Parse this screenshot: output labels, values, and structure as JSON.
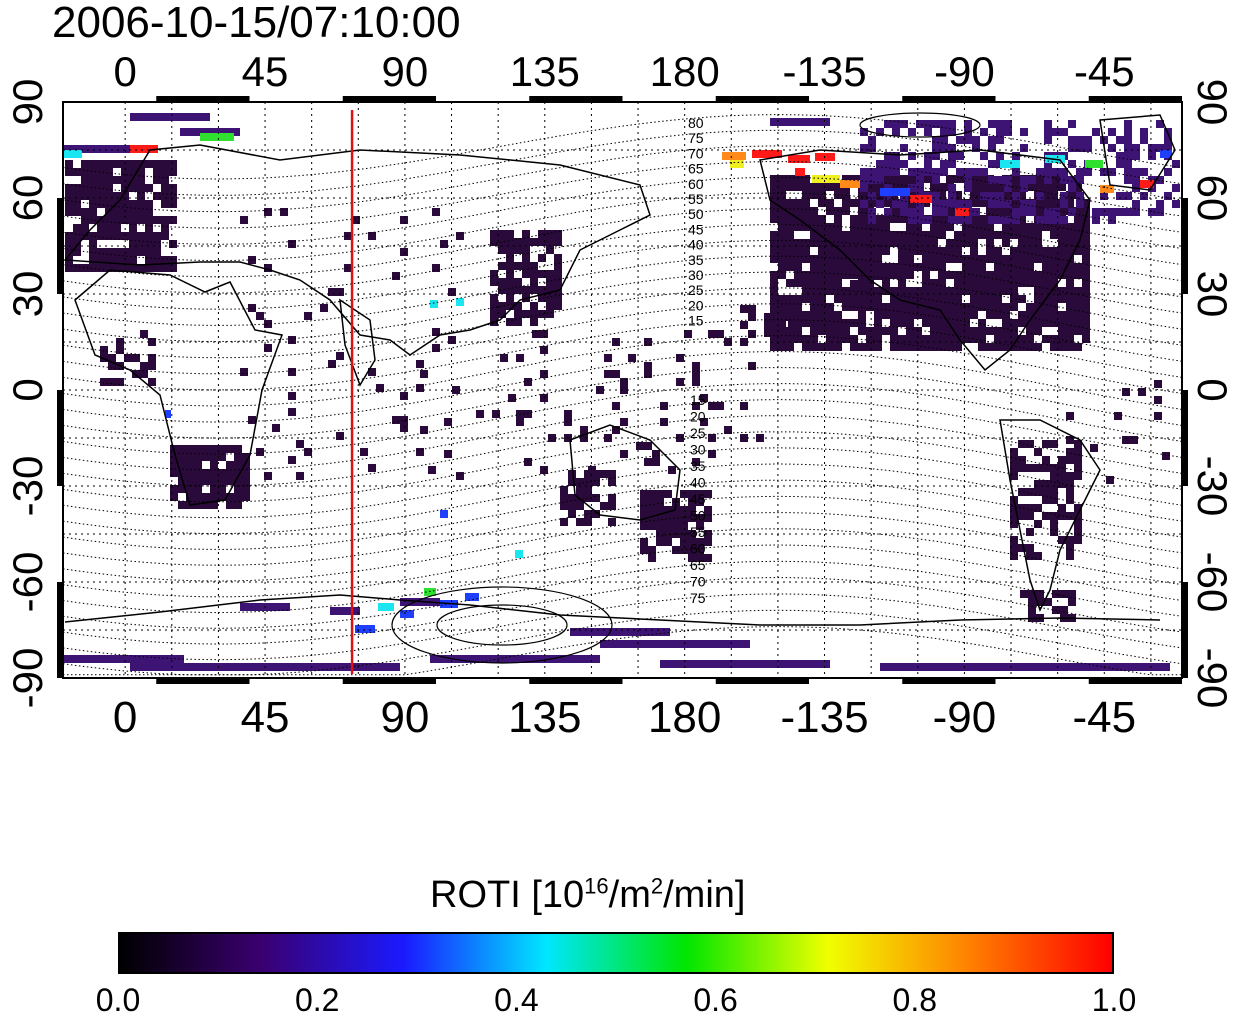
{
  "title": "2006-10-15/07:10:00",
  "map": {
    "lon_ticks": [
      "0",
      "45",
      "90",
      "135",
      "180",
      "-135",
      "-90",
      "-45"
    ],
    "lon_tick_values": [
      0,
      45,
      90,
      135,
      180,
      225,
      270,
      315
    ],
    "lat_ticks": [
      "90",
      "60",
      "30",
      "0",
      "-30",
      "-60",
      "-90"
    ],
    "lat_tick_values": [
      90,
      60,
      30,
      0,
      -30,
      -60,
      -90
    ],
    "lon_range": [
      -20,
      340
    ],
    "lat_range": [
      -90,
      90
    ],
    "grid": true,
    "marker_line_lon": 73,
    "marker_line_color": "#dd1111",
    "contour_labels_north": [
      "80",
      "75",
      "70",
      "65",
      "60",
      "55",
      "50",
      "45",
      "40",
      "35",
      "30",
      "25",
      "20",
      "15"
    ],
    "contour_labels_south": [
      "15",
      "20",
      "25",
      "30",
      "35",
      "40",
      "45",
      "50",
      "55",
      "60",
      "65",
      "70",
      "75"
    ],
    "data_colors": {
      "low": "#2a0a3a",
      "mid": "#3d1473",
      "blue": "#1f3fff",
      "cyan": "#19e6f0",
      "green": "#2fe02f",
      "yellow": "#f0f020",
      "orange": "#ff8a1a",
      "red": "#ff1a1a"
    }
  },
  "colorbar": {
    "label_main": "ROTI  [10",
    "label_sup1": "16",
    "label_mid": "/m",
    "label_sup2": "2",
    "label_end": "/min]",
    "ticks": [
      "0.0",
      "0.2",
      "0.4",
      "0.6",
      "0.8",
      "1.0"
    ],
    "tick_values": [
      0.0,
      0.2,
      0.4,
      0.6,
      0.8,
      1.0
    ],
    "range": [
      0.0,
      1.0
    ],
    "colormap": [
      "#000000",
      "#3a0070",
      "#1a1aff",
      "#00e6ff",
      "#00e600",
      "#f0ff00",
      "#ff7f00",
      "#ff0000"
    ]
  }
}
